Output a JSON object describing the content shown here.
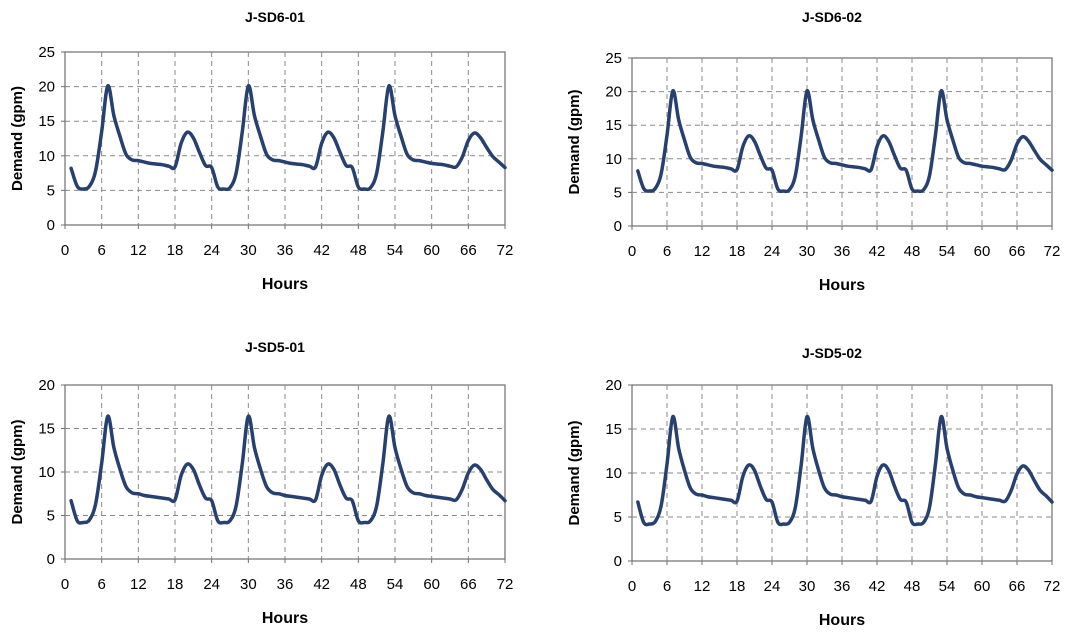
{
  "chart_data": [
    {
      "type": "line",
      "title": "J-SD6-01",
      "xlabel": "Hours",
      "ylabel": "Demand (gpm)",
      "xlim": [
        0,
        72
      ],
      "ylim": [
        0,
        25
      ],
      "xticks": [
        0,
        6,
        12,
        18,
        24,
        30,
        36,
        42,
        48,
        54,
        60,
        66,
        72
      ],
      "yticks": [
        0,
        5,
        10,
        15,
        20,
        25
      ],
      "grid": true,
      "line_color": "#26406f",
      "series": [
        {
          "x": [
            1,
            2,
            3,
            4,
            5,
            6,
            7,
            8,
            9,
            10,
            11,
            12,
            13,
            14,
            15,
            16,
            17,
            18,
            19,
            20,
            21,
            22,
            23,
            24,
            25,
            26,
            27,
            28,
            29,
            30,
            31,
            32,
            33,
            34,
            35,
            36,
            37,
            38,
            39,
            40,
            41,
            42,
            43,
            44,
            45,
            46,
            47,
            48,
            49,
            50,
            51,
            52,
            53,
            54,
            55,
            56,
            57,
            58,
            59,
            60,
            61,
            62,
            63,
            64,
            65,
            66,
            67,
            68,
            69,
            70,
            71,
            72
          ],
          "y": [
            8.2,
            5.6,
            5.2,
            5.6,
            7.8,
            13.5,
            20.1,
            15.8,
            12.8,
            10.2,
            9.4,
            9.3,
            9.1,
            8.9,
            8.8,
            8.7,
            8.5,
            8.4,
            11.8,
            13.4,
            12.6,
            10.5,
            8.6,
            8.3,
            5.5,
            5.2,
            5.4,
            7.5,
            13.4,
            20.1,
            15.8,
            12.8,
            10.2,
            9.4,
            9.3,
            9.1,
            8.9,
            8.8,
            8.7,
            8.5,
            8.4,
            11.8,
            13.4,
            12.6,
            10.5,
            8.6,
            8.3,
            5.5,
            5.2,
            5.4,
            7.5,
            13.4,
            20.1,
            15.8,
            12.8,
            10.2,
            9.4,
            9.3,
            9.1,
            8.9,
            8.8,
            8.7,
            8.5,
            8.4,
            9.8,
            12.2,
            13.3,
            12.6,
            11.2,
            9.9,
            9.1,
            8.3
          ]
        }
      ]
    },
    {
      "type": "line",
      "title": "J-SD6-02",
      "xlabel": "Hours",
      "ylabel": "Demand (gpm)",
      "xlim": [
        0,
        72
      ],
      "ylim": [
        0,
        25
      ],
      "xticks": [
        0,
        6,
        12,
        18,
        24,
        30,
        36,
        42,
        48,
        54,
        60,
        66,
        72
      ],
      "yticks": [
        0,
        5,
        10,
        15,
        20,
        25
      ],
      "grid": true,
      "line_color": "#26406f",
      "series": [
        {
          "x": [
            1,
            2,
            3,
            4,
            5,
            6,
            7,
            8,
            9,
            10,
            11,
            12,
            13,
            14,
            15,
            16,
            17,
            18,
            19,
            20,
            21,
            22,
            23,
            24,
            25,
            26,
            27,
            28,
            29,
            30,
            31,
            32,
            33,
            34,
            35,
            36,
            37,
            38,
            39,
            40,
            41,
            42,
            43,
            44,
            45,
            46,
            47,
            48,
            49,
            50,
            51,
            52,
            53,
            54,
            55,
            56,
            57,
            58,
            59,
            60,
            61,
            62,
            63,
            64,
            65,
            66,
            67,
            68,
            69,
            70,
            71,
            72
          ],
          "y": [
            8.2,
            5.6,
            5.2,
            5.6,
            7.8,
            13.5,
            20.1,
            15.8,
            12.8,
            10.2,
            9.4,
            9.3,
            9.1,
            8.9,
            8.8,
            8.7,
            8.5,
            8.4,
            11.8,
            13.4,
            12.6,
            10.5,
            8.6,
            8.3,
            5.5,
            5.2,
            5.4,
            7.5,
            13.4,
            20.1,
            15.8,
            12.8,
            10.2,
            9.4,
            9.3,
            9.1,
            8.9,
            8.8,
            8.7,
            8.5,
            8.4,
            11.8,
            13.4,
            12.6,
            10.5,
            8.6,
            8.3,
            5.5,
            5.2,
            5.4,
            7.5,
            13.4,
            20.1,
            15.8,
            12.8,
            10.2,
            9.4,
            9.3,
            9.1,
            8.9,
            8.8,
            8.7,
            8.5,
            8.4,
            9.8,
            12.2,
            13.3,
            12.6,
            11.2,
            9.9,
            9.1,
            8.3
          ]
        }
      ]
    },
    {
      "type": "line",
      "title": "J-SD5-01",
      "xlabel": "Hours",
      "ylabel": "Demand (gpm)",
      "xlim": [
        0,
        72
      ],
      "ylim": [
        0,
        20
      ],
      "xticks": [
        0,
        6,
        12,
        18,
        24,
        30,
        36,
        42,
        48,
        54,
        60,
        66,
        72
      ],
      "yticks": [
        0,
        5,
        10,
        15,
        20
      ],
      "grid": true,
      "line_color": "#26406f",
      "series": [
        {
          "x": [
            1,
            2,
            3,
            4,
            5,
            6,
            7,
            8,
            9,
            10,
            11,
            12,
            13,
            14,
            15,
            16,
            17,
            18,
            19,
            20,
            21,
            22,
            23,
            24,
            25,
            26,
            27,
            28,
            29,
            30,
            31,
            32,
            33,
            34,
            35,
            36,
            37,
            38,
            39,
            40,
            41,
            42,
            43,
            44,
            45,
            46,
            47,
            48,
            49,
            50,
            51,
            52,
            53,
            54,
            55,
            56,
            57,
            58,
            59,
            60,
            61,
            62,
            63,
            64,
            65,
            66,
            67,
            68,
            69,
            70,
            71,
            72
          ],
          "y": [
            6.7,
            4.4,
            4.2,
            4.5,
            6.3,
            11.0,
            16.4,
            12.8,
            10.3,
            8.3,
            7.6,
            7.5,
            7.3,
            7.2,
            7.1,
            7.0,
            6.9,
            6.8,
            9.6,
            10.9,
            10.3,
            8.5,
            7.0,
            6.7,
            4.4,
            4.2,
            4.4,
            6.1,
            10.9,
            16.4,
            12.8,
            10.3,
            8.3,
            7.6,
            7.5,
            7.3,
            7.2,
            7.1,
            7.0,
            6.9,
            6.8,
            9.6,
            10.9,
            10.3,
            8.5,
            7.0,
            6.7,
            4.4,
            4.2,
            4.4,
            6.1,
            10.9,
            16.4,
            12.8,
            10.3,
            8.3,
            7.6,
            7.5,
            7.3,
            7.2,
            7.1,
            7.0,
            6.9,
            6.8,
            8.0,
            9.9,
            10.8,
            10.3,
            9.1,
            8.0,
            7.4,
            6.7
          ]
        }
      ]
    },
    {
      "type": "line",
      "title": "J-SD5-02",
      "xlabel": "Hours",
      "ylabel": "Demand (gpm)",
      "xlim": [
        0,
        72
      ],
      "ylim": [
        0,
        20
      ],
      "xticks": [
        0,
        6,
        12,
        18,
        24,
        30,
        36,
        42,
        48,
        54,
        60,
        66,
        72
      ],
      "yticks": [
        0,
        5,
        10,
        15,
        20
      ],
      "grid": true,
      "line_color": "#26406f",
      "series": [
        {
          "x": [
            1,
            2,
            3,
            4,
            5,
            6,
            7,
            8,
            9,
            10,
            11,
            12,
            13,
            14,
            15,
            16,
            17,
            18,
            19,
            20,
            21,
            22,
            23,
            24,
            25,
            26,
            27,
            28,
            29,
            30,
            31,
            32,
            33,
            34,
            35,
            36,
            37,
            38,
            39,
            40,
            41,
            42,
            43,
            44,
            45,
            46,
            47,
            48,
            49,
            50,
            51,
            52,
            53,
            54,
            55,
            56,
            57,
            58,
            59,
            60,
            61,
            62,
            63,
            64,
            65,
            66,
            67,
            68,
            69,
            70,
            71,
            72
          ],
          "y": [
            6.7,
            4.4,
            4.2,
            4.5,
            6.3,
            11.0,
            16.4,
            12.8,
            10.3,
            8.3,
            7.6,
            7.5,
            7.3,
            7.2,
            7.1,
            7.0,
            6.9,
            6.8,
            9.6,
            10.9,
            10.3,
            8.5,
            7.0,
            6.7,
            4.4,
            4.2,
            4.4,
            6.1,
            10.9,
            16.4,
            12.8,
            10.3,
            8.3,
            7.6,
            7.5,
            7.3,
            7.2,
            7.1,
            7.0,
            6.9,
            6.8,
            9.6,
            10.9,
            10.3,
            8.5,
            7.0,
            6.7,
            4.4,
            4.2,
            4.4,
            6.1,
            10.9,
            16.4,
            12.8,
            10.3,
            8.3,
            7.6,
            7.5,
            7.3,
            7.2,
            7.1,
            7.0,
            6.9,
            6.8,
            8.0,
            9.9,
            10.8,
            10.3,
            9.1,
            8.0,
            7.4,
            6.7
          ]
        }
      ]
    }
  ]
}
